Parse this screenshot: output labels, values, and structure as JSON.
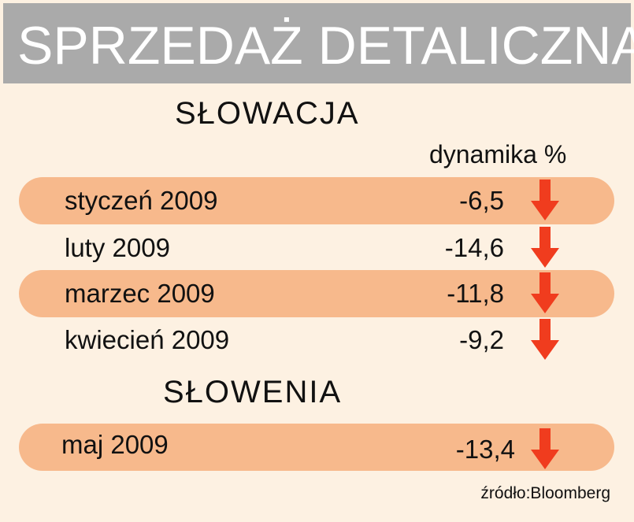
{
  "chart_data": {
    "type": "table",
    "title": "SPRZEDAŻ DETALICZNA",
    "column_header": "dynamika %",
    "source": "źródło:Bloomberg",
    "trend_color": "#f03c1e",
    "highlight_color": "#f7b98c",
    "sections": [
      {
        "name": "SŁOWACJA",
        "rows": [
          {
            "period": "styczeń 2009",
            "value": "-6,5",
            "trend": "down"
          },
          {
            "period": "luty 2009",
            "value": "-14,6",
            "trend": "down"
          },
          {
            "period": "marzec 2009",
            "value": "-11,8",
            "trend": "down"
          },
          {
            "period": "kwiecień 2009",
            "value": "-9,2",
            "trend": "down"
          }
        ]
      },
      {
        "name": "SŁOWENIA",
        "rows": [
          {
            "period": "maj 2009",
            "value": "-13,4",
            "trend": "down"
          }
        ]
      }
    ]
  }
}
